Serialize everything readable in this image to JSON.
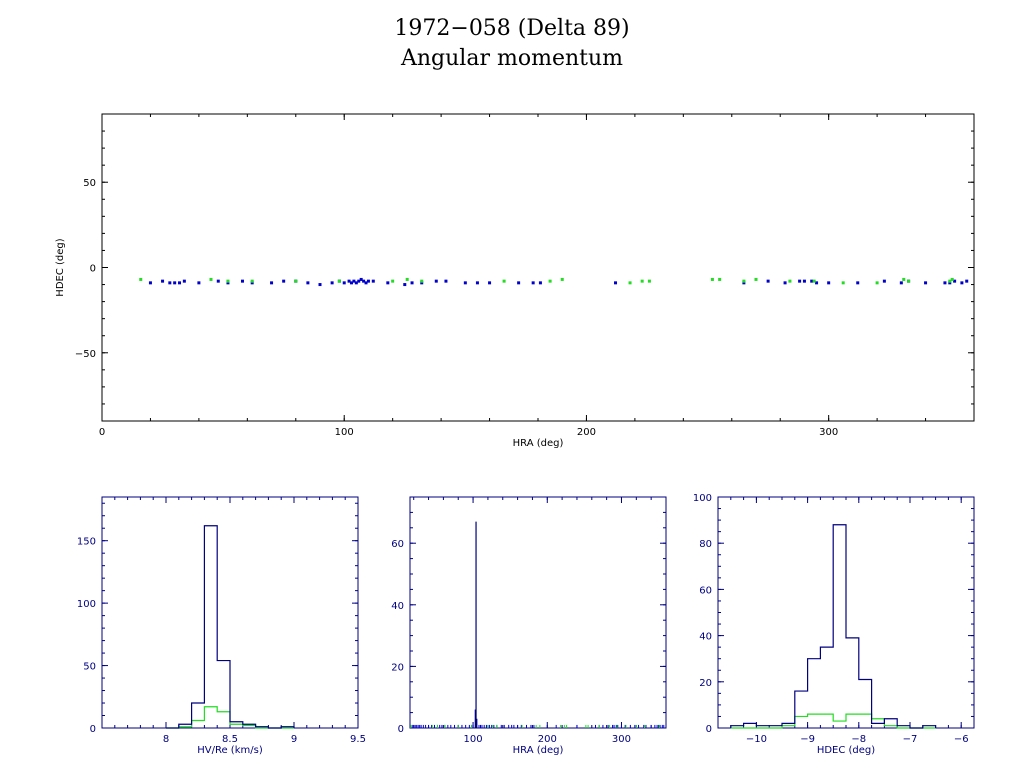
{
  "page": {
    "title_line1": "1972−058 (Delta 89)",
    "title_line2": "Angular momentum"
  },
  "colors": {
    "series_blue": "#0000cc",
    "series_green": "#22dd22",
    "axis_black": "#000000",
    "axis_navy": "#000080"
  },
  "chart_data": [
    {
      "type": "scatter",
      "xlabel": "HRA (deg)",
      "ylabel": "HDEC (deg)",
      "xlim": [
        0,
        360
      ],
      "ylim": [
        -90,
        90
      ],
      "xticks": [
        0,
        100,
        200,
        300
      ],
      "yticks": [
        50,
        0,
        -50
      ],
      "series": [
        {
          "color": "#0000cc",
          "points": [
            [
              20,
              -9
            ],
            [
              25,
              -8
            ],
            [
              28,
              -9
            ],
            [
              30,
              -9
            ],
            [
              32,
              -9
            ],
            [
              34,
              -8
            ],
            [
              40,
              -9
            ],
            [
              48,
              -8
            ],
            [
              52,
              -9
            ],
            [
              58,
              -8
            ],
            [
              62,
              -9
            ],
            [
              70,
              -9
            ],
            [
              75,
              -8
            ],
            [
              80,
              -8
            ],
            [
              85,
              -9
            ],
            [
              90,
              -10
            ],
            [
              95,
              -9
            ],
            [
              98,
              -8
            ],
            [
              100,
              -9
            ],
            [
              102,
              -8
            ],
            [
              103,
              -9
            ],
            [
              104,
              -8
            ],
            [
              105,
              -9
            ],
            [
              106,
              -8
            ],
            [
              107,
              -7
            ],
            [
              108,
              -8
            ],
            [
              109,
              -9
            ],
            [
              110,
              -8
            ],
            [
              112,
              -8
            ],
            [
              118,
              -9
            ],
            [
              125,
              -10
            ],
            [
              128,
              -9
            ],
            [
              132,
              -9
            ],
            [
              138,
              -8
            ],
            [
              142,
              -8
            ],
            [
              150,
              -9
            ],
            [
              155,
              -9
            ],
            [
              160,
              -9
            ],
            [
              172,
              -9
            ],
            [
              178,
              -9
            ],
            [
              181,
              -9
            ],
            [
              212,
              -9
            ],
            [
              265,
              -9
            ],
            [
              275,
              -8
            ],
            [
              282,
              -9
            ],
            [
              288,
              -8
            ],
            [
              290,
              -8
            ],
            [
              293,
              -8
            ],
            [
              295,
              -9
            ],
            [
              300,
              -9
            ],
            [
              312,
              -9
            ],
            [
              323,
              -8
            ],
            [
              330,
              -9
            ],
            [
              333,
              -8
            ],
            [
              340,
              -9
            ],
            [
              348,
              -9
            ],
            [
              350,
              -9
            ],
            [
              352,
              -8
            ],
            [
              355,
              -9
            ],
            [
              357,
              -8
            ]
          ]
        },
        {
          "color": "#22dd22",
          "points": [
            [
              16,
              -7
            ],
            [
              45,
              -7
            ],
            [
              52,
              -8
            ],
            [
              62,
              -8
            ],
            [
              80,
              -8
            ],
            [
              98,
              -8
            ],
            [
              120,
              -8
            ],
            [
              126,
              -7
            ],
            [
              132,
              -8
            ],
            [
              166,
              -8
            ],
            [
              185,
              -8
            ],
            [
              190,
              -7
            ],
            [
              218,
              -9
            ],
            [
              223,
              -8
            ],
            [
              226,
              -8
            ],
            [
              252,
              -7
            ],
            [
              255,
              -7
            ],
            [
              265,
              -8
            ],
            [
              270,
              -7
            ],
            [
              284,
              -8
            ],
            [
              294,
              -8
            ],
            [
              306,
              -9
            ],
            [
              320,
              -9
            ],
            [
              331,
              -7
            ],
            [
              333,
              -8
            ],
            [
              350,
              -8
            ],
            [
              351,
              -7
            ]
          ]
        }
      ]
    },
    {
      "type": "histogram",
      "xlabel": "HV/Re (km/s)",
      "xlim": [
        7.5,
        9.5
      ],
      "ylim": [
        0,
        185
      ],
      "xticks": [
        8,
        8.5,
        9,
        9.5
      ],
      "xtick_labels": [
        "8",
        "8.5",
        "9",
        "9.5"
      ],
      "yticks": [
        0,
        50,
        100,
        150
      ],
      "bin_edges": [
        8.0,
        8.1,
        8.2,
        8.3,
        8.4,
        8.5,
        8.6,
        8.7,
        8.8,
        8.9,
        9.0
      ],
      "series": [
        {
          "color": "#000080",
          "counts": [
            0,
            3,
            20,
            162,
            54,
            5,
            3,
            1,
            0,
            1
          ]
        },
        {
          "color": "#22dd22",
          "counts": [
            0,
            1,
            6,
            17,
            13,
            3,
            2,
            0,
            0,
            0
          ]
        }
      ]
    },
    {
      "type": "histogram",
      "xlabel": "HRA (deg)",
      "xlim": [
        15,
        360
      ],
      "ylim": [
        0,
        75
      ],
      "xticks": [
        100,
        200,
        300
      ],
      "xtick_labels": [
        "100",
        "200",
        "300"
      ],
      "yticks": [
        0,
        20,
        40,
        60
      ],
      "spikes": [
        {
          "x": 104,
          "height": 67,
          "color": "#000080"
        },
        {
          "x": 103,
          "height": 6,
          "color": "#000080"
        },
        {
          "x": 105,
          "height": 3,
          "color": "#000080"
        }
      ],
      "baseline_points": {
        "blue": [
          18,
          20,
          22,
          24,
          26,
          28,
          30,
          33,
          36,
          40,
          44,
          48,
          52,
          55,
          58,
          62,
          66,
          70,
          75,
          80,
          85,
          90,
          95,
          98,
          100,
          108,
          110,
          112,
          115,
          118,
          122,
          125,
          128,
          132,
          138,
          142,
          148,
          152,
          155,
          160,
          165,
          172,
          178,
          182,
          212,
          240,
          265,
          270,
          275,
          282,
          288,
          290,
          293,
          295,
          300,
          305,
          312,
          318,
          323,
          330,
          333,
          340,
          345,
          348,
          350,
          352,
          355,
          357
        ],
        "green": [
          16,
          45,
          52,
          62,
          80,
          98,
          120,
          126,
          132,
          166,
          185,
          190,
          218,
          223,
          226,
          252,
          255,
          270,
          284,
          294,
          306,
          320,
          331,
          351
        ]
      }
    },
    {
      "type": "histogram",
      "xlabel": "HDEC (deg)",
      "xlim": [
        -10.75,
        -5.75
      ],
      "ylim": [
        0,
        100
      ],
      "xticks": [
        -10,
        -9,
        -8,
        -7,
        -6
      ],
      "xtick_labels": [
        "−10",
        "−9",
        "−8",
        "−7",
        "−6"
      ],
      "yticks": [
        0,
        20,
        40,
        60,
        80,
        100
      ],
      "bin_edges": [
        -10.5,
        -10.25,
        -10.0,
        -9.75,
        -9.5,
        -9.25,
        -9.0,
        -8.75,
        -8.5,
        -8.25,
        -8.0,
        -7.75,
        -7.5,
        -7.25,
        -7.0,
        -6.75,
        -6.5
      ],
      "series": [
        {
          "color": "#000080",
          "counts": [
            1,
            2,
            1,
            1,
            2,
            16,
            30,
            35,
            88,
            39,
            21,
            2,
            4,
            1,
            0,
            1
          ]
        },
        {
          "color": "#22dd22",
          "counts": [
            0,
            0,
            0,
            0,
            1,
            5,
            6,
            6,
            3,
            6,
            6,
            4,
            1,
            0,
            0,
            0
          ]
        }
      ]
    }
  ]
}
